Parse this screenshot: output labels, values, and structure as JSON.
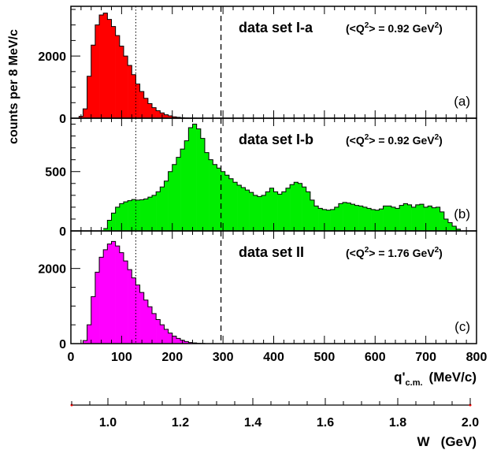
{
  "chart_data": {
    "type": "histogram",
    "ylabel": "counts per 8 MeV/c",
    "x_axis": {
      "label": "q'",
      "label_sub": "c.m.",
      "label_unit": "(MeV/c)",
      "lim": [
        0,
        800
      ],
      "ticks": [
        0,
        100,
        200,
        300,
        400,
        500,
        600,
        700,
        800
      ],
      "tick_labels": [
        "0",
        "100",
        "200",
        "300",
        "400",
        "500",
        "600",
        "700",
        "800"
      ]
    },
    "w_axis": {
      "label": "W   (GeV)",
      "ticks": [
        1.0,
        1.2,
        1.4,
        1.6,
        1.8,
        2.0
      ],
      "tick_labels": [
        "1.0",
        "1.2",
        "1.4",
        "1.6",
        "1.8",
        "2.0"
      ],
      "q_at_ticks": [
        92,
        309,
        516,
        718,
        918,
        1117
      ],
      "range": [
        0.9,
        2.0
      ]
    },
    "bin_width": 8,
    "dotted_line_x": 128,
    "dashed_line_x": 296,
    "panels": [
      {
        "id": "a",
        "title": "data set I-a",
        "q2_prefix": "(<Q",
        "q2_sup": "2",
        "q2_mid": "> = 0.92 GeV",
        "q2_end": ")",
        "panel_label": "(a)",
        "color": "#ff0000",
        "ylim": [
          0,
          3600
        ],
        "yticks": [
          0,
          2000
        ],
        "ytick_labels": [
          "0",
          "2000"
        ],
        "x": [
          0,
          8,
          16,
          24,
          32,
          40,
          48,
          56,
          64,
          72,
          80,
          88,
          96,
          104,
          112,
          120,
          128,
          136,
          144,
          152,
          160,
          168,
          176,
          184,
          192,
          200,
          208,
          216,
          224,
          232,
          240,
          248
        ],
        "counts": [
          0,
          0,
          60,
          300,
          1350,
          2350,
          3000,
          3320,
          3380,
          3180,
          2950,
          2660,
          2320,
          2000,
          1700,
          1400,
          1100,
          860,
          640,
          470,
          340,
          240,
          170,
          110,
          75,
          45,
          28,
          16,
          9,
          5,
          2,
          0
        ]
      },
      {
        "id": "b",
        "title": "data set I-b",
        "q2_prefix": "(<Q",
        "q2_sup": "2",
        "q2_mid": "> = 0.92 GeV",
        "q2_end": ")",
        "panel_label": "(b)",
        "color": "#00ee00",
        "ylim": [
          0,
          950
        ],
        "yticks": [
          0,
          500
        ],
        "ytick_labels": [
          "0",
          "500"
        ],
        "x": [
          64,
          72,
          80,
          88,
          96,
          104,
          112,
          120,
          128,
          136,
          144,
          152,
          160,
          168,
          176,
          184,
          192,
          200,
          208,
          216,
          224,
          232,
          240,
          248,
          256,
          264,
          272,
          280,
          288,
          296,
          304,
          312,
          320,
          328,
          336,
          344,
          352,
          360,
          368,
          376,
          384,
          392,
          400,
          408,
          416,
          424,
          432,
          440,
          448,
          456,
          464,
          472,
          480,
          488,
          496,
          504,
          512,
          520,
          528,
          536,
          544,
          552,
          560,
          568,
          576,
          584,
          592,
          600,
          608,
          616,
          624,
          632,
          640,
          648,
          656,
          664,
          672,
          680,
          688,
          696,
          704,
          712,
          720,
          728,
          736,
          744,
          752,
          760,
          768
        ],
        "counts": [
          20,
          90,
          150,
          200,
          230,
          245,
          255,
          265,
          260,
          262,
          270,
          285,
          300,
          330,
          370,
          420,
          500,
          560,
          620,
          690,
          760,
          870,
          900,
          860,
          780,
          660,
          600,
          560,
          530,
          500,
          470,
          440,
          410,
          385,
          365,
          345,
          325,
          300,
          290,
          300,
          330,
          360,
          330,
          310,
          330,
          360,
          390,
          410,
          400,
          370,
          330,
          260,
          210,
          190,
          180,
          175,
          180,
          200,
          230,
          240,
          235,
          225,
          215,
          210,
          200,
          190,
          180,
          175,
          185,
          210,
          210,
          200,
          190,
          215,
          230,
          220,
          200,
          220,
          225,
          200,
          210,
          195,
          200,
          160,
          100,
          70,
          40,
          15,
          0
        ]
      },
      {
        "id": "c",
        "title": "data set II",
        "q2_prefix": "(<Q",
        "q2_sup": "2",
        "q2_mid": "> = 1.76 GeV",
        "q2_end": ")",
        "panel_label": "(c)",
        "color": "#ff00ff",
        "ylim": [
          0,
          3000
        ],
        "yticks": [
          0,
          2000
        ],
        "ytick_labels": [
          "0",
          "2000"
        ],
        "x": [
          0,
          8,
          16,
          24,
          32,
          40,
          48,
          56,
          64,
          72,
          80,
          88,
          96,
          104,
          112,
          120,
          128,
          136,
          144,
          152,
          160,
          168,
          176,
          184,
          192,
          200,
          208,
          216,
          224,
          232,
          240,
          248,
          256,
          264
        ],
        "counts": [
          0,
          0,
          0,
          80,
          500,
          1250,
          1900,
          2300,
          2500,
          2650,
          2720,
          2600,
          2420,
          2200,
          1970,
          1750,
          1560,
          1360,
          1160,
          980,
          800,
          640,
          500,
          380,
          280,
          200,
          140,
          90,
          55,
          30,
          18,
          9,
          4,
          0
        ]
      }
    ]
  }
}
